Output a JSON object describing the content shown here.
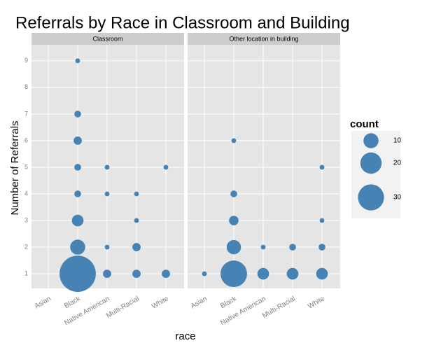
{
  "chart_data": {
    "type": "scatter",
    "title": "Referrals by Race in Classroom and Building",
    "x_label": "race",
    "y_label": "Number of Referrals",
    "categories": [
      "Asian",
      "Black",
      "Native American",
      "Multi-Racial",
      "White"
    ],
    "ylim": [
      0.45,
      9.6
    ],
    "yticks": [
      1,
      2,
      3,
      4,
      5,
      6,
      7,
      8,
      9
    ],
    "grid": true,
    "color": "#4682b4",
    "size_legend": {
      "title": "count",
      "values": [
        10,
        20,
        30
      ]
    },
    "panels": [
      {
        "name": "Classroom",
        "x": [
          "Black",
          "Black",
          "Black",
          "Black",
          "Black",
          "Black",
          "Black",
          "Black",
          "Native American",
          "Native American",
          "Native American",
          "Native American",
          "Multi-Racial",
          "Multi-Racial",
          "Multi-Racial",
          "Multi-Racial",
          "White",
          "White"
        ],
        "y": [
          1,
          2,
          3,
          4,
          5,
          6,
          7,
          9,
          1,
          2,
          4,
          5,
          1,
          2,
          3,
          4,
          1,
          5
        ],
        "size": [
          58,
          10,
          6,
          2,
          2,
          3,
          2,
          1,
          3,
          1,
          1,
          1,
          3,
          3,
          1,
          1,
          3,
          1
        ]
      },
      {
        "name": "Other location in building",
        "x": [
          "Asian",
          "Black",
          "Black",
          "Black",
          "Black",
          "Black",
          "Native American",
          "Native American",
          "Multi-Racial",
          "Multi-Racial",
          "White",
          "White",
          "White",
          "White"
        ],
        "y": [
          1,
          1,
          2,
          3,
          4,
          6,
          1,
          2,
          1,
          2,
          1,
          2,
          3,
          5
        ],
        "size": [
          1,
          31,
          9,
          4,
          2,
          1,
          6,
          1,
          6,
          2,
          6,
          2,
          1,
          1
        ]
      }
    ]
  }
}
